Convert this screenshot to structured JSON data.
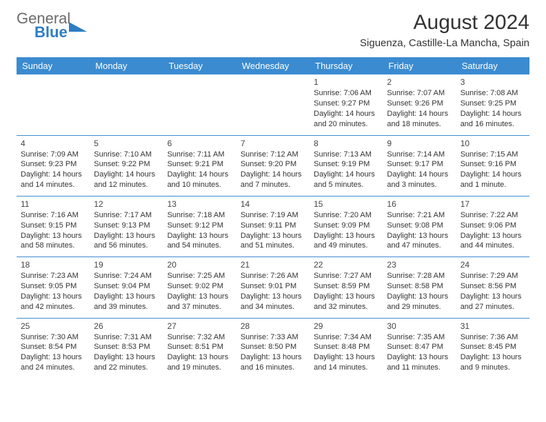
{
  "logo": {
    "word1": "General",
    "word2": "Blue"
  },
  "title": "August 2024",
  "location": "Siguenza, Castille-La Mancha, Spain",
  "header_bg": "#3b8bd0",
  "header_text_color": "#ffffff",
  "row_divider_color": "#3b8bd0",
  "day_names": [
    "Sunday",
    "Monday",
    "Tuesday",
    "Wednesday",
    "Thursday",
    "Friday",
    "Saturday"
  ],
  "weeks": [
    [
      null,
      null,
      null,
      null,
      {
        "d": "1",
        "sr": "Sunrise: 7:06 AM",
        "ss": "Sunset: 9:27 PM",
        "dl": "Daylight: 14 hours and 20 minutes."
      },
      {
        "d": "2",
        "sr": "Sunrise: 7:07 AM",
        "ss": "Sunset: 9:26 PM",
        "dl": "Daylight: 14 hours and 18 minutes."
      },
      {
        "d": "3",
        "sr": "Sunrise: 7:08 AM",
        "ss": "Sunset: 9:25 PM",
        "dl": "Daylight: 14 hours and 16 minutes."
      }
    ],
    [
      {
        "d": "4",
        "sr": "Sunrise: 7:09 AM",
        "ss": "Sunset: 9:23 PM",
        "dl": "Daylight: 14 hours and 14 minutes."
      },
      {
        "d": "5",
        "sr": "Sunrise: 7:10 AM",
        "ss": "Sunset: 9:22 PM",
        "dl": "Daylight: 14 hours and 12 minutes."
      },
      {
        "d": "6",
        "sr": "Sunrise: 7:11 AM",
        "ss": "Sunset: 9:21 PM",
        "dl": "Daylight: 14 hours and 10 minutes."
      },
      {
        "d": "7",
        "sr": "Sunrise: 7:12 AM",
        "ss": "Sunset: 9:20 PM",
        "dl": "Daylight: 14 hours and 7 minutes."
      },
      {
        "d": "8",
        "sr": "Sunrise: 7:13 AM",
        "ss": "Sunset: 9:19 PM",
        "dl": "Daylight: 14 hours and 5 minutes."
      },
      {
        "d": "9",
        "sr": "Sunrise: 7:14 AM",
        "ss": "Sunset: 9:17 PM",
        "dl": "Daylight: 14 hours and 3 minutes."
      },
      {
        "d": "10",
        "sr": "Sunrise: 7:15 AM",
        "ss": "Sunset: 9:16 PM",
        "dl": "Daylight: 14 hours and 1 minute."
      }
    ],
    [
      {
        "d": "11",
        "sr": "Sunrise: 7:16 AM",
        "ss": "Sunset: 9:15 PM",
        "dl": "Daylight: 13 hours and 58 minutes."
      },
      {
        "d": "12",
        "sr": "Sunrise: 7:17 AM",
        "ss": "Sunset: 9:13 PM",
        "dl": "Daylight: 13 hours and 56 minutes."
      },
      {
        "d": "13",
        "sr": "Sunrise: 7:18 AM",
        "ss": "Sunset: 9:12 PM",
        "dl": "Daylight: 13 hours and 54 minutes."
      },
      {
        "d": "14",
        "sr": "Sunrise: 7:19 AM",
        "ss": "Sunset: 9:11 PM",
        "dl": "Daylight: 13 hours and 51 minutes."
      },
      {
        "d": "15",
        "sr": "Sunrise: 7:20 AM",
        "ss": "Sunset: 9:09 PM",
        "dl": "Daylight: 13 hours and 49 minutes."
      },
      {
        "d": "16",
        "sr": "Sunrise: 7:21 AM",
        "ss": "Sunset: 9:08 PM",
        "dl": "Daylight: 13 hours and 47 minutes."
      },
      {
        "d": "17",
        "sr": "Sunrise: 7:22 AM",
        "ss": "Sunset: 9:06 PM",
        "dl": "Daylight: 13 hours and 44 minutes."
      }
    ],
    [
      {
        "d": "18",
        "sr": "Sunrise: 7:23 AM",
        "ss": "Sunset: 9:05 PM",
        "dl": "Daylight: 13 hours and 42 minutes."
      },
      {
        "d": "19",
        "sr": "Sunrise: 7:24 AM",
        "ss": "Sunset: 9:04 PM",
        "dl": "Daylight: 13 hours and 39 minutes."
      },
      {
        "d": "20",
        "sr": "Sunrise: 7:25 AM",
        "ss": "Sunset: 9:02 PM",
        "dl": "Daylight: 13 hours and 37 minutes."
      },
      {
        "d": "21",
        "sr": "Sunrise: 7:26 AM",
        "ss": "Sunset: 9:01 PM",
        "dl": "Daylight: 13 hours and 34 minutes."
      },
      {
        "d": "22",
        "sr": "Sunrise: 7:27 AM",
        "ss": "Sunset: 8:59 PM",
        "dl": "Daylight: 13 hours and 32 minutes."
      },
      {
        "d": "23",
        "sr": "Sunrise: 7:28 AM",
        "ss": "Sunset: 8:58 PM",
        "dl": "Daylight: 13 hours and 29 minutes."
      },
      {
        "d": "24",
        "sr": "Sunrise: 7:29 AM",
        "ss": "Sunset: 8:56 PM",
        "dl": "Daylight: 13 hours and 27 minutes."
      }
    ],
    [
      {
        "d": "25",
        "sr": "Sunrise: 7:30 AM",
        "ss": "Sunset: 8:54 PM",
        "dl": "Daylight: 13 hours and 24 minutes."
      },
      {
        "d": "26",
        "sr": "Sunrise: 7:31 AM",
        "ss": "Sunset: 8:53 PM",
        "dl": "Daylight: 13 hours and 22 minutes."
      },
      {
        "d": "27",
        "sr": "Sunrise: 7:32 AM",
        "ss": "Sunset: 8:51 PM",
        "dl": "Daylight: 13 hours and 19 minutes."
      },
      {
        "d": "28",
        "sr": "Sunrise: 7:33 AM",
        "ss": "Sunset: 8:50 PM",
        "dl": "Daylight: 13 hours and 16 minutes."
      },
      {
        "d": "29",
        "sr": "Sunrise: 7:34 AM",
        "ss": "Sunset: 8:48 PM",
        "dl": "Daylight: 13 hours and 14 minutes."
      },
      {
        "d": "30",
        "sr": "Sunrise: 7:35 AM",
        "ss": "Sunset: 8:47 PM",
        "dl": "Daylight: 13 hours and 11 minutes."
      },
      {
        "d": "31",
        "sr": "Sunrise: 7:36 AM",
        "ss": "Sunset: 8:45 PM",
        "dl": "Daylight: 13 hours and 9 minutes."
      }
    ]
  ]
}
